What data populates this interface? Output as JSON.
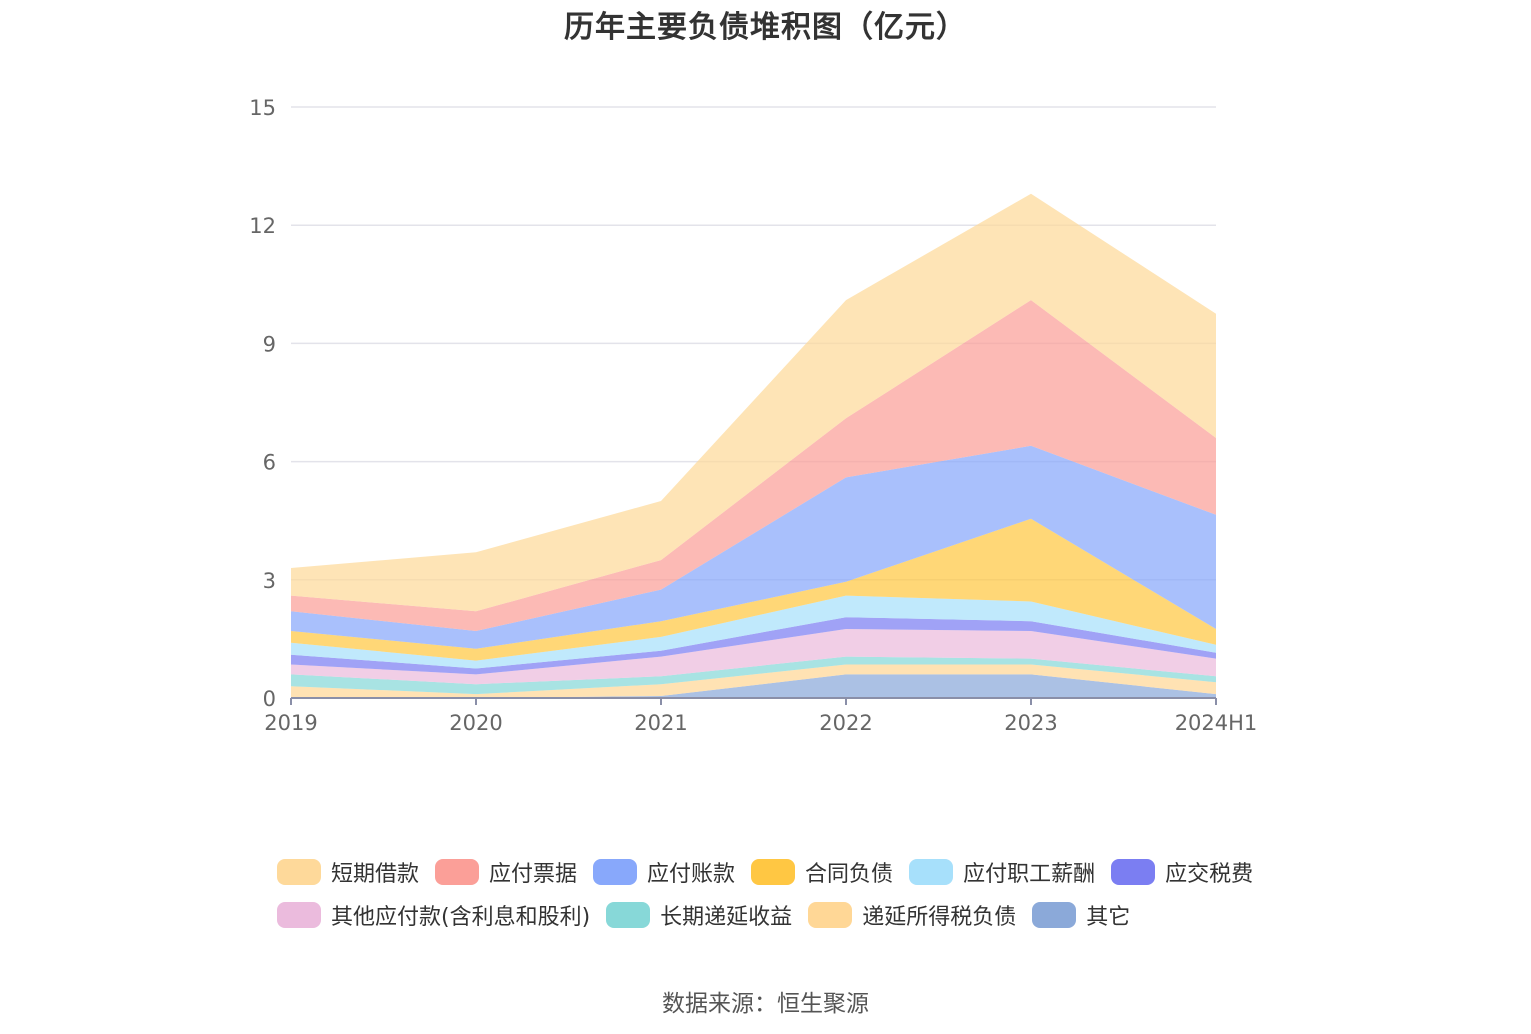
{
  "chart_data": {
    "type": "area",
    "stacked": true,
    "title": "历年主要负债堆积图（亿元）",
    "x": [
      "2019",
      "2020",
      "2021",
      "2022",
      "2023",
      "2024H1"
    ],
    "ylim": [
      0,
      15
    ],
    "yticks": [
      0,
      3,
      6,
      9,
      12,
      15
    ],
    "grid": true,
    "legend_position": "bottom",
    "series": [
      {
        "name": "其它",
        "color": "#8ba9d9",
        "values": [
          0.0,
          0.0,
          0.05,
          0.6,
          0.6,
          0.1
        ]
      },
      {
        "name": "递延所得税负债",
        "color": "#ffd796",
        "values": [
          0.3,
          0.1,
          0.3,
          0.25,
          0.25,
          0.3
        ]
      },
      {
        "name": "长期递延收益",
        "color": "#87d8d8",
        "values": [
          0.3,
          0.25,
          0.2,
          0.2,
          0.15,
          0.15
        ]
      },
      {
        "name": "其他应付款(含利息和股利)",
        "color": "#ebbbdd",
        "values": [
          0.25,
          0.25,
          0.5,
          0.7,
          0.7,
          0.45
        ]
      },
      {
        "name": "应交税费",
        "color": "#7b7ef2",
        "values": [
          0.25,
          0.15,
          0.15,
          0.3,
          0.25,
          0.15
        ]
      },
      {
        "name": "应付职工薪酬",
        "color": "#a7e0fb",
        "values": [
          0.3,
          0.2,
          0.35,
          0.55,
          0.5,
          0.2
        ]
      },
      {
        "name": "合同负债",
        "color": "#ffc743",
        "values": [
          0.3,
          0.3,
          0.4,
          0.35,
          2.1,
          0.4
        ]
      },
      {
        "name": "应付账款",
        "color": "#88a8fb",
        "values": [
          0.5,
          0.45,
          0.8,
          2.65,
          1.85,
          2.9
        ]
      },
      {
        "name": "应付票据",
        "color": "#fb9f98",
        "values": [
          0.4,
          0.5,
          0.75,
          1.5,
          3.7,
          1.95
        ]
      },
      {
        "name": "短期借款",
        "color": "#fed99a",
        "values": [
          0.7,
          1.5,
          1.5,
          3.0,
          2.7,
          3.15
        ]
      }
    ]
  },
  "legend": {
    "row1": [
      {
        "label": "短期借款",
        "color": "#fed99a"
      },
      {
        "label": "应付票据",
        "color": "#fb9f98"
      },
      {
        "label": "应付账款",
        "color": "#88a8fb"
      },
      {
        "label": "合同负债",
        "color": "#ffc743"
      },
      {
        "label": "应付职工薪酬",
        "color": "#a7e0fb"
      },
      {
        "label": "应交税费",
        "color": "#7b7ef2"
      }
    ],
    "row2": [
      {
        "label": "其他应付款(含利息和股利)",
        "color": "#ebbbdd"
      },
      {
        "label": "长期递延收益",
        "color": "#87d8d8"
      },
      {
        "label": "递延所得税负债",
        "color": "#ffd796"
      },
      {
        "label": "其它",
        "color": "#8ba9d9"
      }
    ]
  },
  "source_text": "数据来源：恒生聚源"
}
